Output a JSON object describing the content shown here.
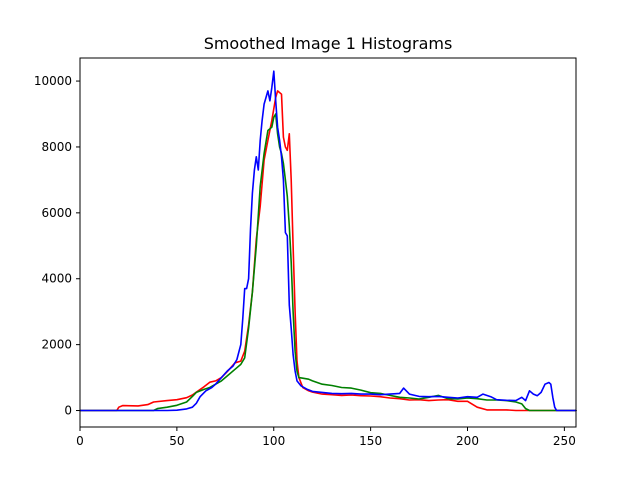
{
  "chart_data": {
    "type": "line",
    "title": "Smoothed Image 1 Histograms",
    "xlabel": "",
    "ylabel": "",
    "xlim": [
      0,
      256
    ],
    "ylim": [
      -500,
      10700
    ],
    "x_ticks": [
      0,
      50,
      100,
      150,
      200,
      250
    ],
    "y_ticks": [
      0,
      2000,
      4000,
      6000,
      8000,
      10000
    ],
    "grid": false,
    "series": [
      {
        "color": "#ff0000",
        "points": [
          [
            0,
            0
          ],
          [
            19,
            0
          ],
          [
            20,
            100
          ],
          [
            22,
            150
          ],
          [
            30,
            140
          ],
          [
            35,
            180
          ],
          [
            38,
            260
          ],
          [
            45,
            300
          ],
          [
            50,
            330
          ],
          [
            55,
            390
          ],
          [
            58,
            470
          ],
          [
            60,
            560
          ],
          [
            64,
            720
          ],
          [
            67,
            860
          ],
          [
            70,
            900
          ],
          [
            73,
            1000
          ],
          [
            76,
            1180
          ],
          [
            80,
            1450
          ],
          [
            83,
            1500
          ],
          [
            85,
            1800
          ],
          [
            87,
            2600
          ],
          [
            89,
            3600
          ],
          [
            91,
            5200
          ],
          [
            93,
            6200
          ],
          [
            95,
            7600
          ],
          [
            97,
            8200
          ],
          [
            99,
            8800
          ],
          [
            101,
            9500
          ],
          [
            102,
            9700
          ],
          [
            104,
            9600
          ],
          [
            105,
            8300
          ],
          [
            106,
            8000
          ],
          [
            107,
            7900
          ],
          [
            108,
            8400
          ],
          [
            109,
            7000
          ],
          [
            110,
            5000
          ],
          [
            111,
            3000
          ],
          [
            112,
            1500
          ],
          [
            113,
            1000
          ],
          [
            115,
            700
          ],
          [
            118,
            600
          ],
          [
            120,
            560
          ],
          [
            125,
            500
          ],
          [
            130,
            480
          ],
          [
            135,
            460
          ],
          [
            140,
            470
          ],
          [
            145,
            450
          ],
          [
            150,
            440
          ],
          [
            155,
            420
          ],
          [
            160,
            380
          ],
          [
            165,
            360
          ],
          [
            170,
            320
          ],
          [
            175,
            330
          ],
          [
            180,
            300
          ],
          [
            185,
            320
          ],
          [
            190,
            330
          ],
          [
            195,
            280
          ],
          [
            200,
            280
          ],
          [
            205,
            100
          ],
          [
            210,
            20
          ],
          [
            220,
            20
          ],
          [
            225,
            0
          ],
          [
            256,
            0
          ]
        ]
      },
      {
        "color": "#008000",
        "points": [
          [
            0,
            0
          ],
          [
            38,
            0
          ],
          [
            40,
            60
          ],
          [
            45,
            100
          ],
          [
            50,
            160
          ],
          [
            55,
            260
          ],
          [
            58,
            430
          ],
          [
            60,
            550
          ],
          [
            64,
            640
          ],
          [
            67,
            700
          ],
          [
            70,
            800
          ],
          [
            73,
            900
          ],
          [
            76,
            1050
          ],
          [
            80,
            1250
          ],
          [
            83,
            1400
          ],
          [
            85,
            1600
          ],
          [
            87,
            2500
          ],
          [
            89,
            3600
          ],
          [
            91,
            5000
          ],
          [
            93,
            6800
          ],
          [
            95,
            7800
          ],
          [
            97,
            8500
          ],
          [
            99,
            8600
          ],
          [
            100,
            8900
          ],
          [
            101,
            9000
          ],
          [
            102,
            8400
          ],
          [
            103,
            8000
          ],
          [
            104,
            7800
          ],
          [
            105,
            7500
          ],
          [
            106,
            7000
          ],
          [
            107,
            6500
          ],
          [
            108,
            5600
          ],
          [
            109,
            4500
          ],
          [
            110,
            3000
          ],
          [
            111,
            1800
          ],
          [
            112,
            1200
          ],
          [
            113,
            1000
          ],
          [
            115,
            980
          ],
          [
            118,
            950
          ],
          [
            120,
            900
          ],
          [
            125,
            800
          ],
          [
            130,
            760
          ],
          [
            135,
            700
          ],
          [
            140,
            680
          ],
          [
            145,
            620
          ],
          [
            150,
            540
          ],
          [
            155,
            520
          ],
          [
            160,
            460
          ],
          [
            165,
            400
          ],
          [
            170,
            380
          ],
          [
            175,
            350
          ],
          [
            180,
            400
          ],
          [
            185,
            460
          ],
          [
            190,
            360
          ],
          [
            195,
            350
          ],
          [
            200,
            380
          ],
          [
            205,
            360
          ],
          [
            210,
            320
          ],
          [
            215,
            320
          ],
          [
            220,
            300
          ],
          [
            225,
            260
          ],
          [
            228,
            200
          ],
          [
            230,
            60
          ],
          [
            232,
            0
          ],
          [
            256,
            0
          ]
        ]
      },
      {
        "color": "#0000ff",
        "points": [
          [
            0,
            0
          ],
          [
            45,
            0
          ],
          [
            50,
            10
          ],
          [
            55,
            50
          ],
          [
            58,
            100
          ],
          [
            60,
            220
          ],
          [
            62,
            420
          ],
          [
            65,
            600
          ],
          [
            68,
            700
          ],
          [
            70,
            800
          ],
          [
            73,
            1000
          ],
          [
            76,
            1200
          ],
          [
            79,
            1350
          ],
          [
            81,
            1550
          ],
          [
            83,
            2000
          ],
          [
            84,
            2800
          ],
          [
            85,
            3700
          ],
          [
            86,
            3700
          ],
          [
            87,
            4000
          ],
          [
            88,
            5500
          ],
          [
            89,
            6600
          ],
          [
            90,
            7300
          ],
          [
            91,
            7700
          ],
          [
            92,
            7300
          ],
          [
            93,
            8200
          ],
          [
            94,
            8800
          ],
          [
            95,
            9300
          ],
          [
            96,
            9500
          ],
          [
            97,
            9700
          ],
          [
            98,
            9400
          ],
          [
            99,
            9800
          ],
          [
            100,
            10300
          ],
          [
            101,
            9400
          ],
          [
            102,
            8600
          ],
          [
            103,
            8200
          ],
          [
            104,
            7700
          ],
          [
            105,
            7000
          ],
          [
            106,
            5400
          ],
          [
            107,
            5300
          ],
          [
            108,
            3200
          ],
          [
            109,
            2500
          ],
          [
            110,
            1700
          ],
          [
            111,
            1200
          ],
          [
            112,
            900
          ],
          [
            114,
            750
          ],
          [
            117,
            650
          ],
          [
            120,
            580
          ],
          [
            125,
            550
          ],
          [
            130,
            520
          ],
          [
            135,
            510
          ],
          [
            140,
            520
          ],
          [
            145,
            500
          ],
          [
            150,
            500
          ],
          [
            155,
            480
          ],
          [
            160,
            500
          ],
          [
            165,
            520
          ],
          [
            167,
            680
          ],
          [
            170,
            500
          ],
          [
            175,
            430
          ],
          [
            180,
            420
          ],
          [
            185,
            430
          ],
          [
            190,
            400
          ],
          [
            195,
            380
          ],
          [
            200,
            420
          ],
          [
            205,
            400
          ],
          [
            208,
            500
          ],
          [
            212,
            420
          ],
          [
            215,
            330
          ],
          [
            220,
            310
          ],
          [
            225,
            300
          ],
          [
            228,
            400
          ],
          [
            230,
            300
          ],
          [
            232,
            600
          ],
          [
            234,
            500
          ],
          [
            236,
            450
          ],
          [
            238,
            550
          ],
          [
            240,
            800
          ],
          [
            242,
            850
          ],
          [
            243,
            800
          ],
          [
            244,
            400
          ],
          [
            245,
            100
          ],
          [
            246,
            0
          ],
          [
            256,
            0
          ]
        ]
      }
    ]
  }
}
